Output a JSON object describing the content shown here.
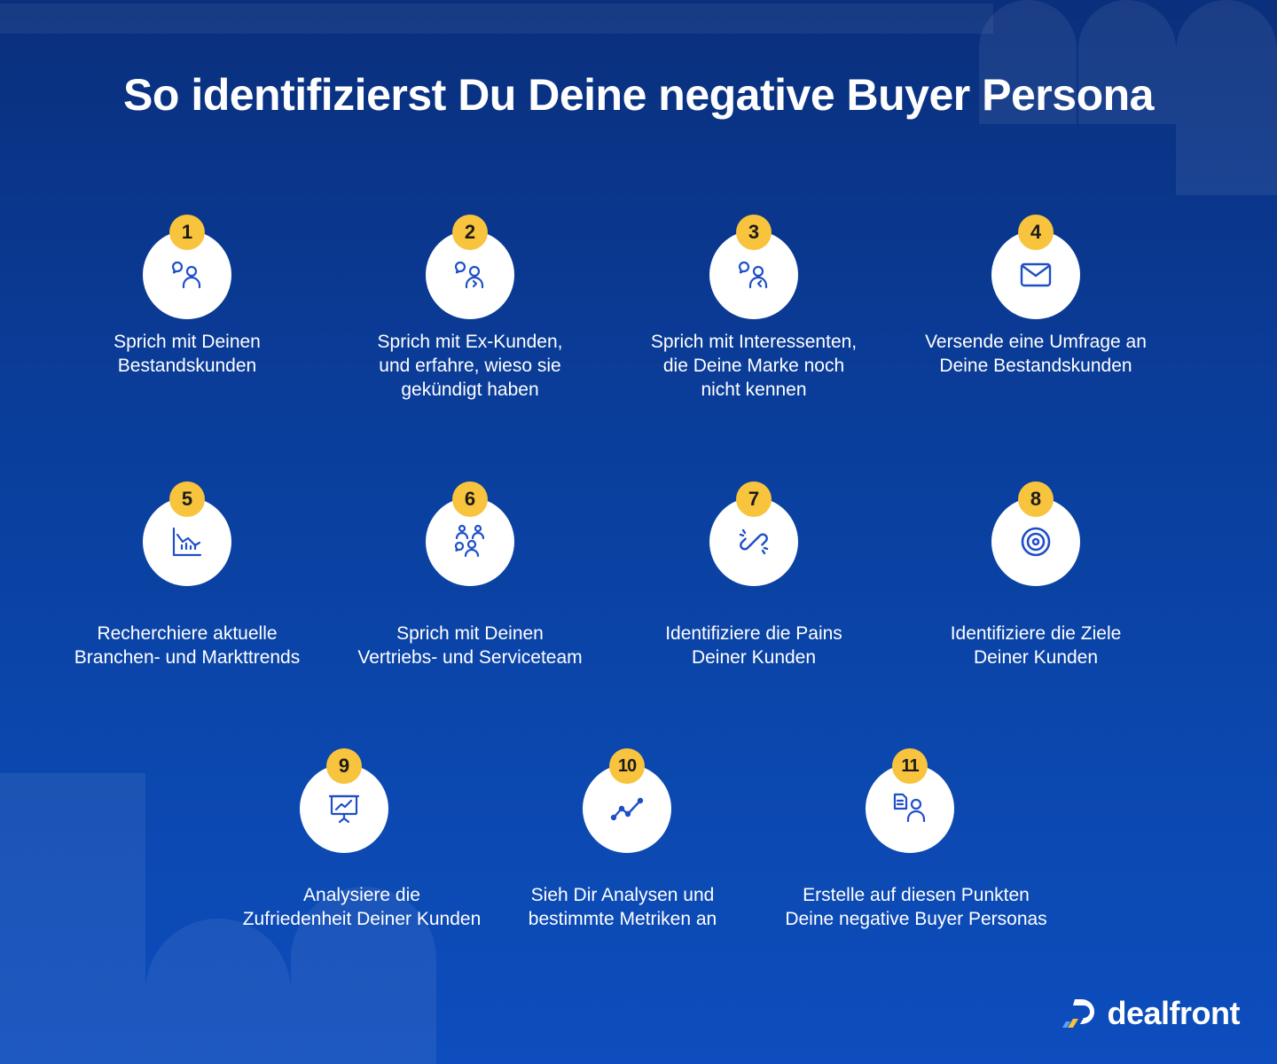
{
  "title": "So identifizierst Du Deine negative Buyer Persona",
  "steps": [
    {
      "number": "1",
      "label_lines": [
        "Sprich mit Deinen",
        "Bestandskunden"
      ],
      "icon": "chat-person-icon"
    },
    {
      "number": "2",
      "label_lines": [
        "Sprich mit Ex-Kunden,",
        "und erfahre, wieso sie",
        "gekündigt haben"
      ],
      "icon": "chat-person-exit-icon"
    },
    {
      "number": "3",
      "label_lines": [
        "Sprich mit Interessenten,",
        "die Deine Marke noch",
        "nicht kennen"
      ],
      "icon": "chat-person-new-icon"
    },
    {
      "number": "4",
      "label_lines": [
        "Versende eine Umfrage an",
        "Deine Bestandskunden"
      ],
      "icon": "envelope-icon"
    },
    {
      "number": "5",
      "label_lines": [
        "Recherchiere aktuelle",
        "Branchen- und Markttrends"
      ],
      "icon": "trend-chart-icon"
    },
    {
      "number": "6",
      "label_lines": [
        "Sprich mit Deinen",
        "Vertriebs- und Serviceteam"
      ],
      "icon": "team-icon"
    },
    {
      "number": "7",
      "label_lines": [
        "Identifiziere die Pains",
        "Deiner Kunden"
      ],
      "icon": "broken-link-icon"
    },
    {
      "number": "8",
      "label_lines": [
        "Identifiziere die Ziele",
        "Deiner Kunden"
      ],
      "icon": "target-icon"
    },
    {
      "number": "9",
      "label_lines": [
        "Analysiere die",
        "Zufriedenheit Deiner Kunden"
      ],
      "icon": "presentation-icon"
    },
    {
      "number": "10",
      "label_lines": [
        "Sieh Dir Analysen und",
        "bestimmte Metriken an"
      ],
      "icon": "line-chart-icon"
    },
    {
      "number": "11",
      "label_lines": [
        "Erstelle auf diesen Punkten",
        "Deine negative Buyer Personas"
      ],
      "icon": "document-person-icon"
    }
  ],
  "logo": {
    "text": "dealfront"
  },
  "colors": {
    "badge": "#f8c33d",
    "icon_stroke": "#1f4fc8",
    "background": "#0b47ad"
  }
}
